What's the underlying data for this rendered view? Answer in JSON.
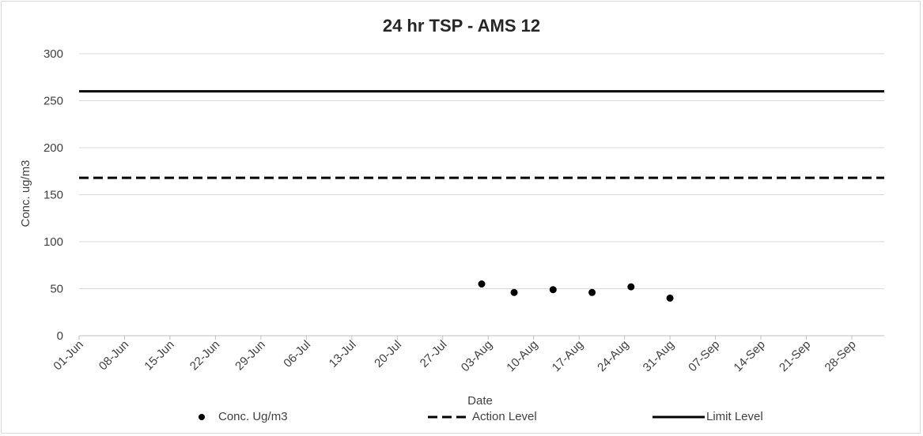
{
  "chart_data": {
    "type": "scatter",
    "title": "24 hr TSP - AMS 12",
    "xlabel": "Date",
    "ylabel": "Conc. ug/m3",
    "ylim": [
      0,
      300
    ],
    "yticks": [
      0,
      50,
      100,
      150,
      200,
      250,
      300
    ],
    "xlim": [
      "2024-06-01",
      "2024-10-03"
    ],
    "xtick_labels": [
      "01-Jun",
      "08-Jun",
      "15-Jun",
      "22-Jun",
      "29-Jun",
      "06-Jul",
      "13-Jul",
      "20-Jul",
      "27-Jul",
      "03-Aug",
      "10-Aug",
      "17-Aug",
      "24-Aug",
      "31-Aug",
      "07-Sep",
      "14-Sep",
      "21-Sep",
      "28-Sep"
    ],
    "grid": "horizontal",
    "legend_position": "bottom",
    "series": [
      {
        "name": "Conc. Ug/m3",
        "style": "marker",
        "color": "#000000",
        "points": [
          {
            "x": "2024-08-02",
            "y": 55
          },
          {
            "x": "2024-08-07",
            "y": 46
          },
          {
            "x": "2024-08-13",
            "y": 49
          },
          {
            "x": "2024-08-19",
            "y": 46
          },
          {
            "x": "2024-08-25",
            "y": 52
          },
          {
            "x": "2024-08-31",
            "y": 40
          }
        ]
      },
      {
        "name": "Action Level",
        "style": "dashed",
        "color": "#000000",
        "value": 168
      },
      {
        "name": "Limit Level",
        "style": "solid",
        "color": "#000000",
        "value": 260
      }
    ]
  }
}
